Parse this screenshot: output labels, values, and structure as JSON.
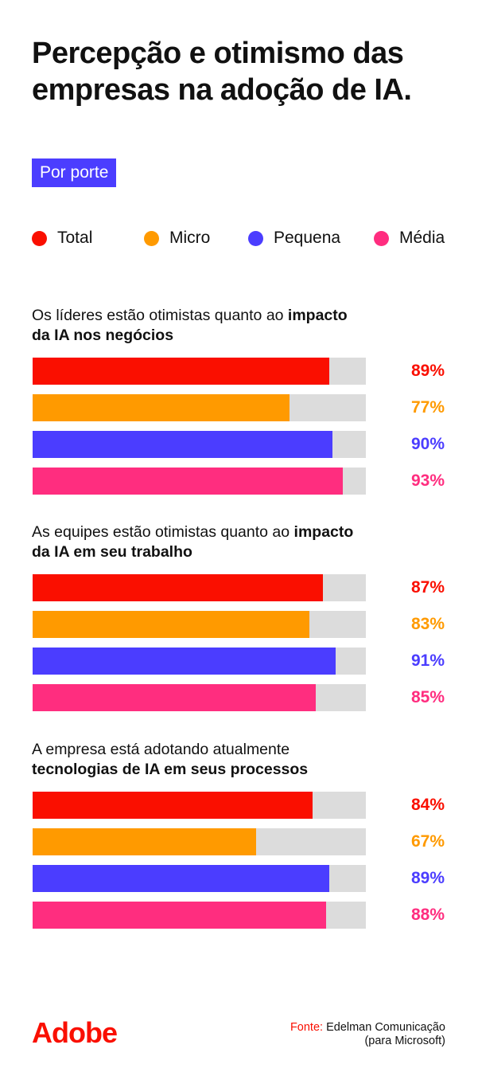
{
  "title": "Percepção e otimismo das empresas na adoção de IA.",
  "badge": "Por porte",
  "colors": {
    "Total": "#fa0f00",
    "Micro": "#ff9a00",
    "Pequena": "#4b3dff",
    "Média": "#ff2d7f",
    "track": "#dcdcdc"
  },
  "chart_data": {
    "type": "bar",
    "orientation": "horizontal",
    "xlim": [
      0,
      100
    ],
    "unit": "%",
    "legend": [
      "Total",
      "Micro",
      "Pequena",
      "Média"
    ],
    "legend_placement": "top",
    "groups": [
      {
        "question_plain": "Os líderes estão otimistas quanto ao ",
        "question_bold": "impacto da IA nos negócios",
        "series": [
          {
            "name": "Total",
            "value": 89
          },
          {
            "name": "Micro",
            "value": 77
          },
          {
            "name": "Pequena",
            "value": 90
          },
          {
            "name": "Média",
            "value": 93
          }
        ]
      },
      {
        "question_plain": "As equipes estão otimistas quanto ao ",
        "question_bold": "impacto da IA em seu trabalho",
        "series": [
          {
            "name": "Total",
            "value": 87
          },
          {
            "name": "Micro",
            "value": 83
          },
          {
            "name": "Pequena",
            "value": 91
          },
          {
            "name": "Média",
            "value": 85
          }
        ]
      },
      {
        "question_plain": "A empresa está adotando atualmente ",
        "question_bold": "tecnologias de IA em seus processos",
        "series": [
          {
            "name": "Total",
            "value": 84
          },
          {
            "name": "Micro",
            "value": 67
          },
          {
            "name": "Pequena",
            "value": 89
          },
          {
            "name": "Média",
            "value": 88
          }
        ]
      }
    ]
  },
  "footer": {
    "logo": "Adobe",
    "source_label": "Fonte:",
    "source_line1": "Edelman Comunicação",
    "source_line2": "(para Microsoft)"
  }
}
